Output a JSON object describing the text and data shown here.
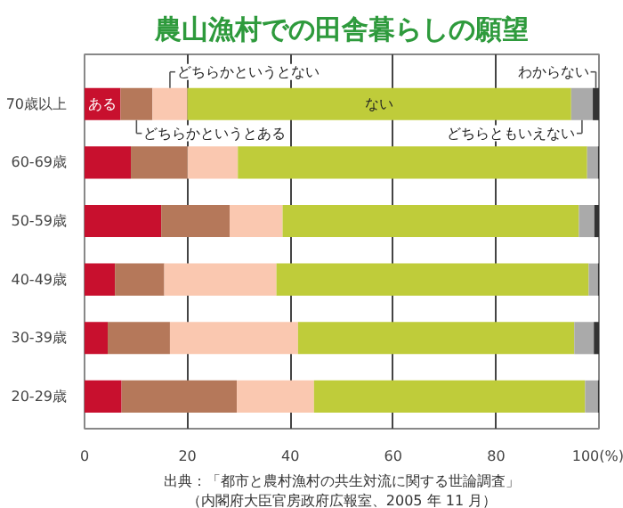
{
  "chart_data": {
    "type": "bar",
    "orientation": "horizontal",
    "stacked": true,
    "title": "農山漁村での田舎暮らしの願望",
    "categories": [
      "70歳以上",
      "60-69歳",
      "50-59歳",
      "40-49歳",
      "30-39歳",
      "20-29歳"
    ],
    "series": [
      {
        "name": "ある",
        "color": "#c8102e",
        "values": [
          7.0,
          9.0,
          14.9,
          5.9,
          4.5,
          7.2
        ]
      },
      {
        "name": "どちらかというとある",
        "color": "#b5785a",
        "values": [
          6.2,
          11.0,
          13.3,
          9.6,
          12.1,
          22.4
        ]
      },
      {
        "name": "どちらかというとない",
        "color": "#fac8b0",
        "values": [
          6.8,
          9.8,
          10.3,
          21.8,
          24.9,
          15.0
        ]
      },
      {
        "name": "ない",
        "color": "#bfcc3a",
        "values": [
          74.6,
          67.9,
          57.6,
          60.7,
          53.7,
          52.7
        ]
      },
      {
        "name": "どちらともいえない",
        "color": "#aaaaaa",
        "values": [
          4.2,
          2.1,
          3.0,
          1.8,
          3.8,
          2.5
        ]
      },
      {
        "name": "わからない",
        "color": "#333333",
        "values": [
          1.2,
          0.2,
          0.9,
          0.2,
          1.0,
          0.2
        ]
      }
    ],
    "xlim": [
      0,
      100
    ],
    "xticks": [
      0,
      20,
      40,
      60,
      80,
      {
        "value": 100,
        "label": "100(%)"
      }
    ],
    "grid": "x",
    "legend": false,
    "annotations": [
      "出典：「都市と農村漁村の共生対流に関する世論調査」",
      "（内閣府大臣官房政府広報室、2005 年 11 月）"
    ]
  }
}
